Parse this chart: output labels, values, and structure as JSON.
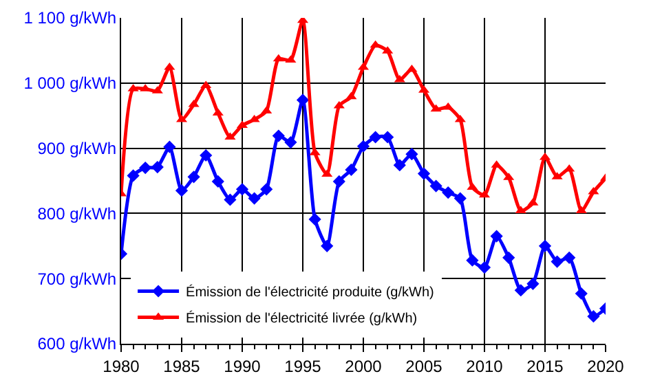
{
  "chart_data": {
    "type": "line",
    "x": [
      1980,
      1981,
      1982,
      1983,
      1984,
      1985,
      1986,
      1987,
      1988,
      1989,
      1990,
      1991,
      1992,
      1993,
      1994,
      1995,
      1996,
      1997,
      1998,
      1999,
      2000,
      2001,
      2002,
      2003,
      2004,
      2005,
      2006,
      2007,
      2008,
      2009,
      2010,
      2011,
      2012,
      2013,
      2014,
      2015,
      2016,
      2017,
      2018,
      2019,
      2020
    ],
    "series": [
      {
        "name": "Émission de l'électricité produite (g/kWh)",
        "color": "#0000ff",
        "marker": "diamond",
        "values": [
          738,
          858,
          870,
          871,
          902,
          835,
          856,
          889,
          849,
          821,
          837,
          823,
          837,
          919,
          909,
          974,
          791,
          750,
          849,
          867,
          903,
          917,
          917,
          874,
          891,
          861,
          842,
          832,
          823,
          728,
          717,
          765,
          732,
          682,
          692,
          750,
          726,
          732,
          677,
          642,
          654
        ]
      },
      {
        "name": "Émission de l'électricité livrée (g/kWh)",
        "color": "#ff0000",
        "marker": "triangle",
        "values": [
          830,
          991,
          991,
          988,
          1024,
          944,
          967,
          996,
          954,
          917,
          935,
          944,
          957,
          1037,
          1035,
          1096,
          893,
          860,
          965,
          979,
          1024,
          1058,
          1049,
          1005,
          1021,
          989,
          960,
          963,
          944,
          840,
          828,
          874,
          855,
          804,
          816,
          886,
          856,
          868,
          804,
          833,
          854
        ]
      }
    ],
    "xlim": [
      1980,
      2020
    ],
    "xticks": [
      1980,
      1985,
      1990,
      1995,
      2000,
      2005,
      2010,
      2015,
      2020
    ],
    "ylim": [
      600,
      1100
    ],
    "yticks": [
      {
        "value": 600,
        "label": "600 g/kWh"
      },
      {
        "value": 700,
        "label": "700 g/kWh"
      },
      {
        "value": 800,
        "label": "800 g/kWh"
      },
      {
        "value": 900,
        "label": "900 g/kWh"
      },
      {
        "value": 1000,
        "label": "1 000 g/kWh"
      },
      {
        "value": 1100,
        "label": "1 100 g/kWh"
      }
    ],
    "grid": true,
    "legend": "bottom left",
    "line_style": "solid"
  }
}
